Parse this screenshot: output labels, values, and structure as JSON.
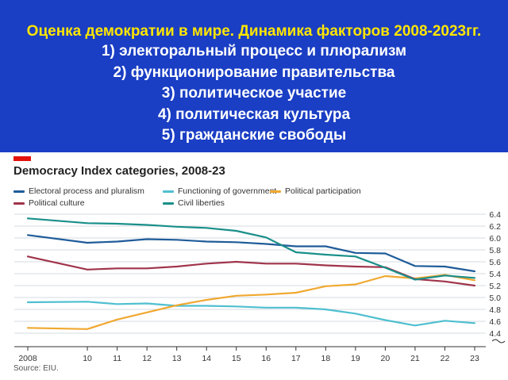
{
  "banner": {
    "title": "Оценка демократии в мире. Динамика факторов 2008-2023гг.",
    "lines": [
      "1) электоральный процесс и плюрализм",
      "2) функционирование правительства",
      "3) политическое участие",
      "4) политическая культура",
      "5) гражданские свободы"
    ],
    "bg_color": "#1a3ec4",
    "title_color": "#ffe600",
    "text_color": "#ffffff"
  },
  "source": "Source: EIU.",
  "chart_data": {
    "type": "line",
    "title": "Democracy Index categories, 2008-23",
    "x": [
      2008,
      2010,
      2011,
      2012,
      2013,
      2014,
      2015,
      2016,
      2017,
      2018,
      2019,
      2020,
      2021,
      2022,
      2023
    ],
    "x_tick_labels": [
      "2008",
      "10",
      "11",
      "12",
      "13",
      "14",
      "15",
      "16",
      "17",
      "18",
      "19",
      "20",
      "21",
      "22",
      "23"
    ],
    "y_ticks": [
      "6.4",
      "6.2",
      "6.0",
      "5.8",
      "5.6",
      "5.4",
      "5.2",
      "5.0",
      "4.8",
      "4.6",
      "4.4"
    ],
    "ylim": [
      4.2,
      6.4
    ],
    "y_axis_side": "right",
    "grid": true,
    "legend_position": "top",
    "series": [
      {
        "name": "Electoral process and pluralism",
        "color": "#1f5c99",
        "values": [
          6.05,
          5.92,
          5.94,
          5.98,
          5.97,
          5.94,
          5.93,
          5.9,
          5.86,
          5.86,
          5.75,
          5.74,
          5.53,
          5.52,
          5.44
        ]
      },
      {
        "name": "Functioning of government",
        "color": "#4fbfd0",
        "values": [
          4.92,
          4.93,
          4.89,
          4.9,
          4.86,
          4.86,
          4.85,
          4.83,
          4.83,
          4.8,
          4.73,
          4.62,
          4.53,
          4.61,
          4.57
        ]
      },
      {
        "name": "Political participation",
        "color": "#f0a830",
        "values": [
          4.49,
          4.47,
          4.63,
          4.75,
          4.87,
          4.96,
          5.03,
          5.05,
          5.08,
          5.19,
          5.22,
          5.36,
          5.32,
          5.38,
          5.29
        ]
      },
      {
        "name": "Political culture",
        "color": "#a0344b",
        "values": [
          5.69,
          5.47,
          5.49,
          5.49,
          5.52,
          5.57,
          5.6,
          5.57,
          5.57,
          5.54,
          5.52,
          5.51,
          5.31,
          5.27,
          5.2
        ]
      },
      {
        "name": "Civil liberties",
        "color": "#1a8f8a",
        "values": [
          6.33,
          6.25,
          6.24,
          6.22,
          6.19,
          6.17,
          6.12,
          6.01,
          5.76,
          5.72,
          5.69,
          5.5,
          5.3,
          5.37,
          5.33
        ]
      }
    ]
  }
}
